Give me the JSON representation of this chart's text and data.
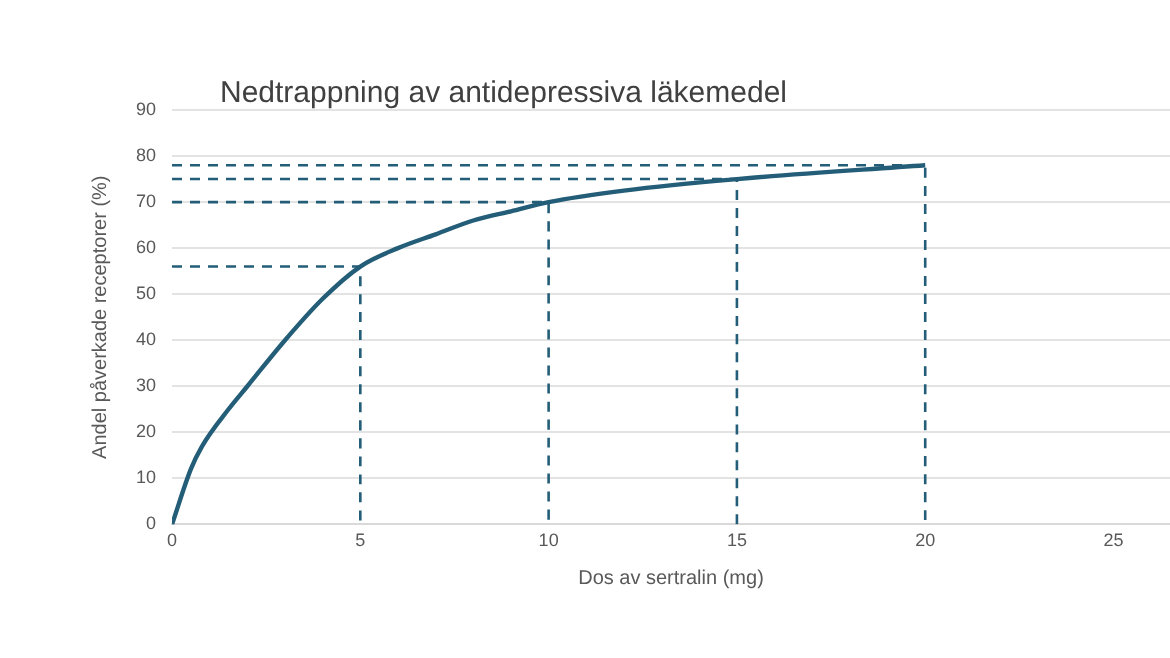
{
  "chart_data": {
    "type": "line",
    "title": "Nedtrappning av antidepressiva läkemedel",
    "xlabel": "Dos av sertralin (mg)",
    "ylabel": "Andel påverkade receptorer (%)",
    "xlim": [
      0,
      26.5
    ],
    "xticks": [
      0,
      5,
      10,
      15,
      20,
      25
    ],
    "ylim": [
      0,
      90
    ],
    "yticks": [
      0,
      10,
      20,
      30,
      40,
      50,
      60,
      70,
      80,
      90
    ],
    "grid": "y",
    "legend": false,
    "marker": "none",
    "series": [
      {
        "color": "#235d77",
        "line_style": "solid",
        "x": [
          0,
          0.5,
          0.8,
          1.5,
          2,
          3,
          4,
          5,
          6,
          7,
          8,
          9,
          10,
          12,
          15,
          20
        ],
        "values": [
          0,
          12,
          17,
          25,
          30,
          40,
          49,
          56,
          60,
          63,
          66,
          68,
          70,
          72.5,
          75,
          78
        ]
      },
      {
        "color": "#235d77",
        "line_style": "dashed",
        "x": [
          0,
          5,
          5
        ],
        "values": [
          56,
          56,
          0
        ]
      },
      {
        "color": "#235d77",
        "line_style": "dashed",
        "x": [
          0,
          10,
          10
        ],
        "values": [
          70,
          70,
          0
        ]
      },
      {
        "color": "#235d77",
        "line_style": "dashed",
        "x": [
          0,
          15,
          15
        ],
        "values": [
          75,
          75,
          0
        ]
      },
      {
        "color": "#235d77",
        "line_style": "dashed",
        "x": [
          0,
          20,
          20
        ],
        "values": [
          78,
          78,
          0
        ]
      }
    ]
  }
}
